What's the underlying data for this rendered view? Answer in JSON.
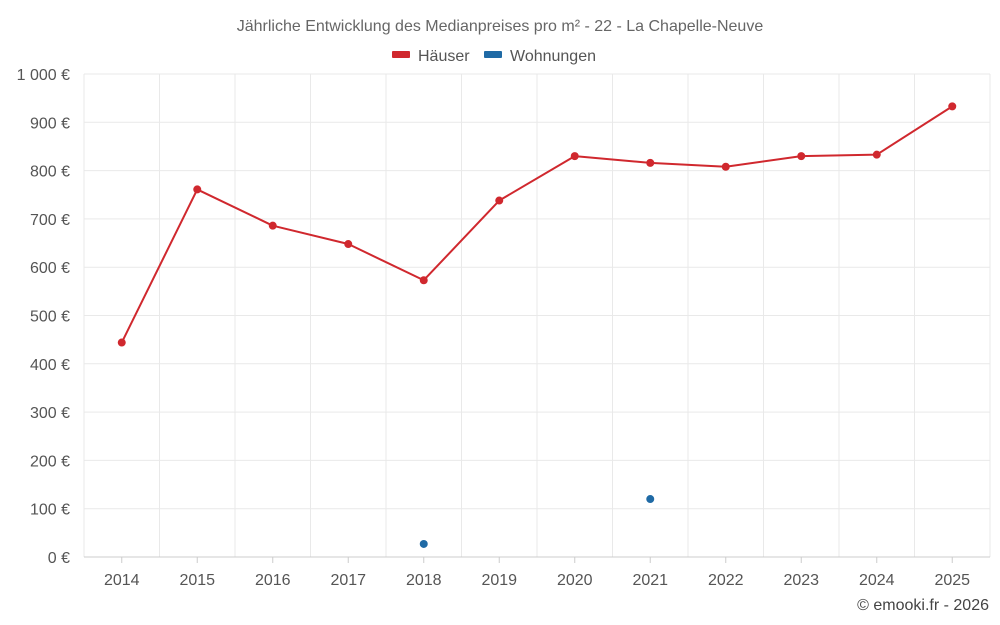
{
  "chart_data": {
    "type": "line",
    "title": "Jährliche Entwicklung des Medianpreises pro m² - 22 - La Chapelle-Neuve",
    "categories": [
      "2014",
      "2015",
      "2016",
      "2017",
      "2018",
      "2019",
      "2020",
      "2021",
      "2022",
      "2023",
      "2024",
      "2025"
    ],
    "series": [
      {
        "name": "Häuser",
        "color": "#d0282e",
        "values": [
          444,
          761,
          686,
          648,
          573,
          738,
          830,
          816,
          808,
          830,
          833,
          933
        ]
      },
      {
        "name": "Wohnungen",
        "color": "#1f6aa5",
        "values": [
          null,
          null,
          null,
          null,
          27,
          null,
          null,
          120,
          null,
          null,
          null,
          null
        ]
      }
    ],
    "ylim": [
      0,
      1000
    ],
    "yticks": [
      0,
      100,
      200,
      300,
      400,
      500,
      600,
      700,
      800,
      900,
      1000
    ],
    "ytick_labels": [
      "0 €",
      "100 €",
      "200 €",
      "300 €",
      "400 €",
      "500 €",
      "600 €",
      "700 €",
      "800 €",
      "900 €",
      "1 000 €"
    ],
    "xlabel": "",
    "ylabel": "",
    "grid": true,
    "legend_position": "top-center"
  },
  "credit": "© emooki.fr - 2026"
}
